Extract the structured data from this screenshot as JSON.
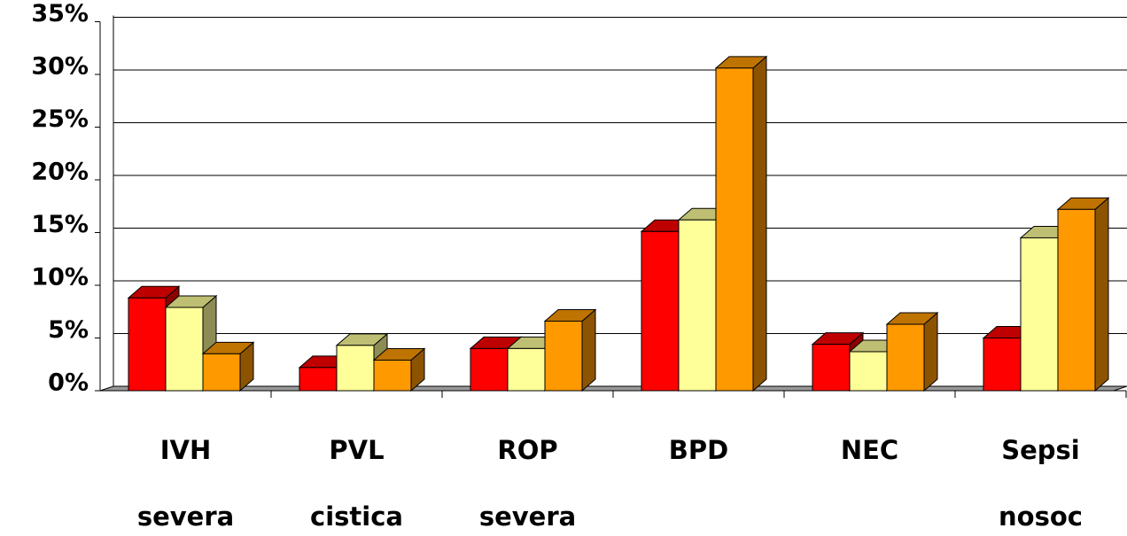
{
  "chart_data": {
    "type": "bar3d",
    "categories": [
      [
        "IVH",
        "severa"
      ],
      [
        "PVL",
        "cistica"
      ],
      [
        "ROP",
        "severa"
      ],
      [
        "BPD"
      ],
      [
        "NEC"
      ],
      [
        "Sepsi",
        "nosoc"
      ]
    ],
    "series": [
      {
        "color": "#ff0000",
        "values": [
          8.8,
          2.2,
          4.0,
          15.1,
          4.4,
          5.0
        ]
      },
      {
        "color": "#ffff99",
        "values": [
          7.9,
          4.3,
          4.0,
          16.2,
          3.7,
          14.5
        ]
      },
      {
        "color": "#ff9900",
        "values": [
          3.5,
          2.9,
          6.6,
          30.6,
          6.3,
          17.2
        ]
      }
    ],
    "ylim": [
      0,
      35
    ],
    "yticks": [
      {
        "value": 0,
        "label": "0%"
      },
      {
        "value": 5,
        "label": "5%"
      },
      {
        "value": 10,
        "label": "10%"
      },
      {
        "value": 15,
        "label": "15%"
      },
      {
        "value": 20,
        "label": "20%"
      },
      {
        "value": 25,
        "label": "25%"
      },
      {
        "value": 30,
        "label": "30%"
      },
      {
        "value": 35,
        "label": "35%"
      }
    ],
    "grid": true
  }
}
